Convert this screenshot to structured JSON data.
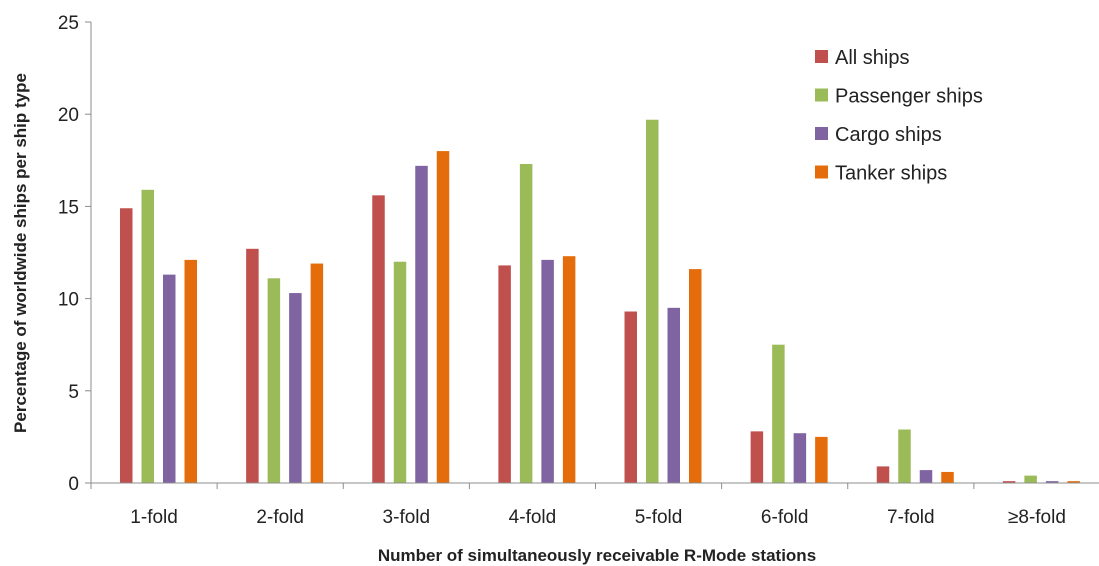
{
  "chart_data": {
    "type": "bar",
    "xlabel": "Number of simultaneously receivable R-Mode stations",
    "ylabel": "Percentage of worldwide ships per ship type",
    "ylim": [
      0,
      25
    ],
    "yticks": [
      0,
      5,
      10,
      15,
      20,
      25
    ],
    "grid": false,
    "legend_position": "top-right",
    "categories": [
      "1-fold",
      "2-fold",
      "3-fold",
      "4-fold",
      "5-fold",
      "6-fold",
      "7-fold",
      "≥8-fold"
    ],
    "series": [
      {
        "name": "All ships",
        "color": "#c0504d",
        "values": [
          14.9,
          12.7,
          15.6,
          11.8,
          9.3,
          2.8,
          0.9,
          0.1
        ]
      },
      {
        "name": "Passenger ships",
        "color": "#9bbb59",
        "values": [
          15.9,
          11.1,
          12.0,
          17.3,
          19.7,
          7.5,
          2.9,
          0.4
        ]
      },
      {
        "name": "Cargo ships",
        "color": "#8064a2",
        "values": [
          11.3,
          10.3,
          17.2,
          12.1,
          9.5,
          2.7,
          0.7,
          0.1
        ]
      },
      {
        "name": "Tanker ships",
        "color": "#e46c0a",
        "values": [
          12.1,
          11.9,
          18.0,
          12.3,
          11.6,
          2.5,
          0.6,
          0.1
        ]
      }
    ]
  }
}
